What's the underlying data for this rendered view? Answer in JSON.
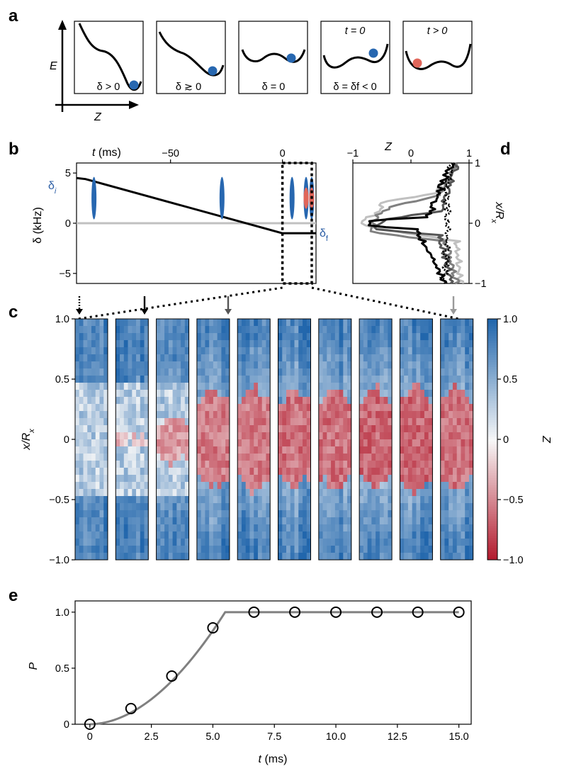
{
  "panels": {
    "a": {
      "letter": "a",
      "energy_axis_label": "E",
      "z_axis_label": "Z",
      "boxes": [
        {
          "top_label": "",
          "bottom_label": "δ > 0",
          "ball_color": "#2767b0"
        },
        {
          "top_label": "",
          "bottom_label": "δ ≳ 0",
          "ball_color": "#2767b0"
        },
        {
          "top_label": "",
          "bottom_label": "δ = 0",
          "ball_color": "#2767b0"
        },
        {
          "top_label": "t = 0",
          "bottom_label": "δ = δf < 0",
          "ball_color": "#2767b0"
        },
        {
          "top_label": "t > 0",
          "bottom_label": "",
          "ball_color": "#e0665a"
        }
      ]
    },
    "b": {
      "letter": "b",
      "delta_i_label": "δi",
      "delta_f_label": "δf"
    },
    "c": {
      "letter": "c"
    },
    "d": {
      "letter": "d"
    },
    "e": {
      "letter": "e"
    }
  },
  "colors": {
    "blue": "#2767b0",
    "red": "#e0665a",
    "light_gray": "#c0c0c0",
    "mid_gray": "#808080",
    "dark_gray": "#555555",
    "black": "#000000"
  },
  "chart_data": [
    {
      "id": "b",
      "type": "line",
      "xlabel": "t (ms)",
      "ylabel": "δ (kHz)",
      "xlim": [
        -92,
        15
      ],
      "ylim": [
        -6,
        6
      ],
      "xticks": [
        -50,
        0
      ],
      "xtick_labels": [
        "−50",
        "0"
      ],
      "yticks": [
        -5,
        0,
        5
      ],
      "ytick_labels": [
        "−5",
        "0",
        "5"
      ],
      "series": [
        {
          "name": "zero",
          "color": "#c0c0c0",
          "x": [
            -92,
            15
          ],
          "y": [
            0,
            0
          ]
        },
        {
          "name": "detuning ramp",
          "color": "#000000",
          "x": [
            -92,
            -88,
            0,
            15
          ],
          "y": [
            4.5,
            4.4,
            -1,
            -1
          ]
        }
      ],
      "dashed_window": [
        0,
        15
      ]
    },
    {
      "id": "c",
      "type": "heatmap",
      "ylabel": "x/Rx",
      "colorbar_label": "Z",
      "ylim": [
        -1,
        1
      ],
      "yticks": [
        -1,
        -0.5,
        0,
        0.5,
        1
      ],
      "ytick_labels": [
        "−1.0",
        "−0.5",
        "0",
        "0.5",
        "1.0"
      ],
      "colorbar_ticks": [
        1,
        0.5,
        0,
        -0.5,
        -1
      ],
      "colorbar_tick_labels": [
        "1.0",
        "0.5",
        "0",
        "−0.5",
        "−1.0"
      ],
      "times_ms": [
        0,
        1.67,
        3.33,
        5,
        6.67,
        8.33,
        10,
        11.67,
        13.33,
        15
      ],
      "domain_half_width": [
        0,
        0.05,
        0.2,
        0.42,
        0.45,
        0.42,
        0.43,
        0.43,
        0.45,
        0.44
      ],
      "domain_intensity": [
        0,
        0.25,
        0.4,
        0.55,
        0.55,
        0.6,
        0.6,
        0.65,
        0.65,
        0.6
      ]
    },
    {
      "id": "d",
      "type": "line",
      "xlabel": "Z",
      "ylabel": "x/Rx",
      "xlim": [
        -1,
        1
      ],
      "ylim": [
        -1,
        1
      ],
      "xticks": [
        -1,
        0,
        1
      ],
      "xtick_labels": [
        "−1",
        "0",
        "1"
      ],
      "yticks": [
        -1,
        0,
        1
      ],
      "ytick_labels": [
        "−1",
        "0",
        "1"
      ],
      "series": [
        {
          "name": "light gray",
          "color": "#c0c0c0",
          "y": [
            -1,
            -0.3,
            -0.05,
            0.05,
            0.2,
            0.35,
            0.5,
            1
          ],
          "x": [
            0.85,
            0.8,
            -0.8,
            -0.8,
            -0.55,
            -0.5,
            0.45,
            0.75
          ]
        },
        {
          "name": "mid gray",
          "color": "#808080",
          "y": [
            -1,
            -0.3,
            -0.15,
            0.1,
            0.3,
            0.45,
            1
          ],
          "x": [
            0.8,
            0.6,
            -0.7,
            -0.6,
            -0.3,
            0.5,
            0.8
          ]
        },
        {
          "name": "dark gray",
          "color": "#555555",
          "y": [
            -1,
            -0.2,
            -0.1,
            0.05,
            0.2,
            1
          ],
          "x": [
            0.7,
            0.5,
            -0.6,
            -0.5,
            0.5,
            0.8
          ]
        },
        {
          "name": "black solid",
          "color": "#000000",
          "y": [
            -1,
            -0.1,
            -0.05,
            0.05,
            0.1,
            1
          ],
          "x": [
            0.6,
            0.1,
            -0.75,
            -0.75,
            0.3,
            0.7
          ]
        },
        {
          "name": "black dotted",
          "color": "#000000",
          "y": [
            -1,
            -0.6,
            0,
            0.6,
            1
          ],
          "x": [
            0.55,
            0.6,
            0.65,
            0.6,
            0.7
          ]
        }
      ]
    },
    {
      "id": "e",
      "type": "scatter",
      "xlabel": "t (ms)",
      "ylabel": "P",
      "xlim": [
        -0.6,
        15.5
      ],
      "ylim": [
        0,
        1.1
      ],
      "xticks": [
        0,
        2.5,
        5.0,
        7.5,
        10.0,
        12.5,
        15.0
      ],
      "xtick_labels": [
        "0",
        "2.5",
        "5.0",
        "7.5",
        "10.0",
        "12.5",
        "15.0"
      ],
      "yticks": [
        0,
        0.5,
        1.0
      ],
      "ytick_labels": [
        "0",
        "0.5",
        "1.0"
      ],
      "x": [
        0,
        1.67,
        3.33,
        5.0,
        6.67,
        8.33,
        10.0,
        11.67,
        13.33,
        15.0
      ],
      "y": [
        0,
        0.14,
        0.43,
        0.86,
        1.0,
        1.0,
        1.0,
        1.0,
        1.0,
        1.0
      ],
      "fit": {
        "color": "#808080",
        "saturation_t": 5.5,
        "exponent": 1.9
      }
    }
  ]
}
